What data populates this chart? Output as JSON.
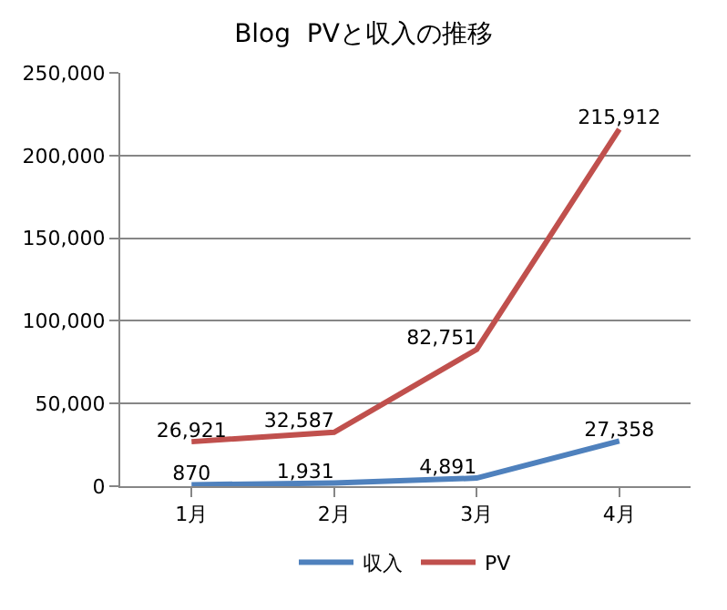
{
  "chart_data": {
    "type": "line",
    "title": "Blog  PVと収入の推移",
    "categories": [
      "1月",
      "2月",
      "3月",
      "4月"
    ],
    "series": [
      {
        "name": "収入",
        "color": "#4f81bd",
        "values": [
          870,
          1931,
          4891,
          27358
        ],
        "value_labels": [
          "870",
          "1,931",
          "4,891",
          "27,358"
        ]
      },
      {
        "name": "PV",
        "color": "#c0504d",
        "values": [
          26921,
          32587,
          82751,
          215912
        ],
        "value_labels": [
          "26,921",
          "32,587",
          "82,751",
          "215,912"
        ]
      }
    ],
    "ylim": [
      0,
      250000
    ],
    "yticks": [
      {
        "value": 0,
        "label": "0"
      },
      {
        "value": 50000,
        "label": "50,000"
      },
      {
        "value": 100000,
        "label": "100,000"
      },
      {
        "value": 150000,
        "label": "150,000"
      },
      {
        "value": 200000,
        "label": "200,000"
      },
      {
        "value": 250000,
        "label": "250,000"
      }
    ],
    "grid": "y",
    "legend": "bottom",
    "marker": "none",
    "line_style": "solid"
  }
}
